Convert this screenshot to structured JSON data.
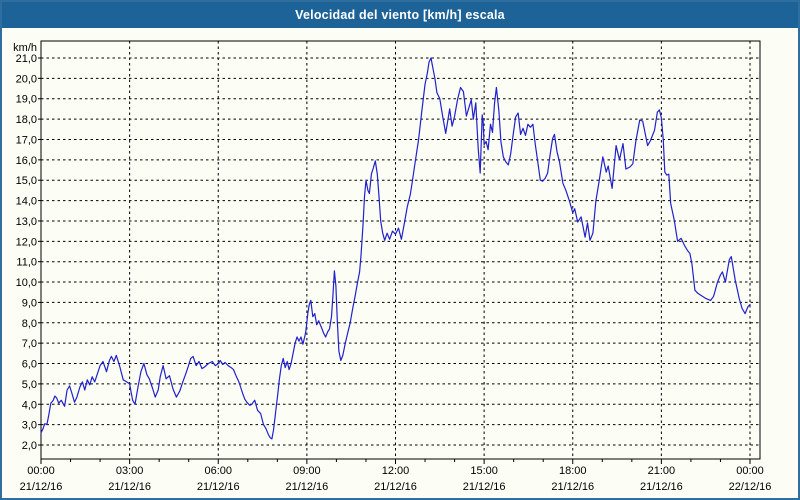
{
  "title": "Velocidad del viento [km/h] escala",
  "colors": {
    "title_bar_bg": "#1d6397",
    "title_text": "#ffffff",
    "window_border": "#2f6f9f",
    "chart_bg": "#fcfdf5",
    "grid": "#000000",
    "axis": "#000000",
    "line": "#2121cc",
    "tick_text": "#000000"
  },
  "y_axis": {
    "unit": "km/h",
    "min": 2.0,
    "max": 21.0,
    "step": 1.0,
    "tick_labels": [
      "21,0",
      "20,0",
      "19,0",
      "18,0",
      "17,0",
      "16,0",
      "15,0",
      "14,0",
      "13,0",
      "12,0",
      "11,0",
      "10,0",
      "9,0",
      "8,0",
      "7,0",
      "6,0",
      "5,0",
      "4,0",
      "3,0",
      "2,0"
    ]
  },
  "x_axis": {
    "major_ticks": [
      {
        "hour": 0,
        "time": "00:00",
        "date": "21/12/16"
      },
      {
        "hour": 3,
        "time": "03:00",
        "date": "21/12/16"
      },
      {
        "hour": 6,
        "time": "06:00",
        "date": "21/12/16"
      },
      {
        "hour": 9,
        "time": "09:00",
        "date": "21/12/16"
      },
      {
        "hour": 12,
        "time": "12:00",
        "date": "21/12/16"
      },
      {
        "hour": 15,
        "time": "15:00",
        "date": "21/12/16"
      },
      {
        "hour": 18,
        "time": "18:00",
        "date": "21/12/16"
      },
      {
        "hour": 21,
        "time": "21:00",
        "date": "21/12/16"
      },
      {
        "hour": 24,
        "time": "00:00",
        "date": "22/12/16"
      }
    ],
    "minor_tick_every_hours": 1
  },
  "chart_data": {
    "type": "line",
    "title": "Velocidad del viento [km/h] escala",
    "xlabel": "",
    "ylabel": "km/h",
    "grid": "dashed",
    "legend": "none",
    "xlim_minutes": [
      0,
      1462
    ],
    "ylim": [
      1.31,
      21.83
    ],
    "series": [
      {
        "name": "Velocidad del viento [km/h]",
        "x_unit": "minutes_since_2016-12-21T00:00",
        "points": [
          [
            0,
            2.6
          ],
          [
            4,
            2.8
          ],
          [
            8,
            3.05
          ],
          [
            12,
            3.0
          ],
          [
            16,
            3.5
          ],
          [
            20,
            4.05
          ],
          [
            25,
            4.2
          ],
          [
            28,
            4.4
          ],
          [
            32,
            4.3
          ],
          [
            36,
            4.05
          ],
          [
            41,
            4.2
          ],
          [
            48,
            3.9
          ],
          [
            53,
            4.7
          ],
          [
            58,
            4.9
          ],
          [
            62,
            4.6
          ],
          [
            68,
            4.1
          ],
          [
            73,
            4.35
          ],
          [
            79,
            4.85
          ],
          [
            84,
            5.1
          ],
          [
            89,
            4.7
          ],
          [
            94,
            5.2
          ],
          [
            99,
            4.95
          ],
          [
            104,
            5.35
          ],
          [
            109,
            5.1
          ],
          [
            114,
            5.45
          ],
          [
            120,
            5.9
          ],
          [
            126,
            6.1
          ],
          [
            133,
            5.6
          ],
          [
            139,
            6.15
          ],
          [
            143,
            6.35
          ],
          [
            148,
            6.1
          ],
          [
            153,
            6.4
          ],
          [
            160,
            5.85
          ],
          [
            167,
            5.2
          ],
          [
            174,
            5.1
          ],
          [
            180,
            5.0
          ],
          [
            186,
            4.2
          ],
          [
            191,
            4.0
          ],
          [
            197,
            4.85
          ],
          [
            203,
            5.6
          ],
          [
            209,
            6.0
          ],
          [
            215,
            5.45
          ],
          [
            220,
            5.25
          ],
          [
            227,
            4.75
          ],
          [
            232,
            4.35
          ],
          [
            238,
            4.7
          ],
          [
            242,
            5.35
          ],
          [
            248,
            5.9
          ],
          [
            254,
            5.25
          ],
          [
            261,
            5.4
          ],
          [
            268,
            4.75
          ],
          [
            275,
            4.35
          ],
          [
            282,
            4.65
          ],
          [
            288,
            5.1
          ],
          [
            294,
            5.5
          ],
          [
            299,
            5.85
          ],
          [
            304,
            6.25
          ],
          [
            309,
            6.35
          ],
          [
            315,
            5.9
          ],
          [
            321,
            6.1
          ],
          [
            327,
            5.75
          ],
          [
            333,
            5.85
          ],
          [
            340,
            6.0
          ],
          [
            348,
            6.1
          ],
          [
            354,
            5.9
          ],
          [
            360,
            6.0
          ],
          [
            364,
            6.15
          ],
          [
            369,
            5.95
          ],
          [
            374,
            6.05
          ],
          [
            380,
            5.9
          ],
          [
            386,
            5.8
          ],
          [
            391,
            5.7
          ],
          [
            396,
            5.4
          ],
          [
            402,
            5.1
          ],
          [
            406,
            4.8
          ],
          [
            410,
            4.5
          ],
          [
            414,
            4.25
          ],
          [
            418,
            4.1
          ],
          [
            424,
            3.95
          ],
          [
            428,
            4.0
          ],
          [
            434,
            4.2
          ],
          [
            440,
            3.7
          ],
          [
            446,
            3.55
          ],
          [
            452,
            3.0
          ],
          [
            457,
            2.8
          ],
          [
            462,
            2.5
          ],
          [
            466,
            2.35
          ],
          [
            469,
            2.3
          ],
          [
            472,
            2.7
          ],
          [
            475,
            3.3
          ],
          [
            478,
            3.9
          ],
          [
            481,
            4.5
          ],
          [
            484,
            5.2
          ],
          [
            488,
            5.9
          ],
          [
            492,
            6.25
          ],
          [
            496,
            5.8
          ],
          [
            500,
            6.1
          ],
          [
            504,
            5.7
          ],
          [
            508,
            6.0
          ],
          [
            512,
            6.5
          ],
          [
            516,
            7.0
          ],
          [
            520,
            7.3
          ],
          [
            524,
            7.1
          ],
          [
            528,
            7.3
          ],
          [
            532,
            6.95
          ],
          [
            536,
            7.35
          ],
          [
            538,
            7.6
          ],
          [
            542,
            8.5
          ],
          [
            545,
            8.9
          ],
          [
            548,
            9.1
          ],
          [
            552,
            8.3
          ],
          [
            556,
            8.45
          ],
          [
            560,
            7.9
          ],
          [
            564,
            8.1
          ],
          [
            569,
            7.8
          ],
          [
            574,
            7.5
          ],
          [
            578,
            7.3
          ],
          [
            582,
            7.55
          ],
          [
            586,
            7.7
          ],
          [
            590,
            8.3
          ],
          [
            593,
            9.4
          ],
          [
            596,
            10.55
          ],
          [
            599,
            9.8
          ],
          [
            602,
            8.0
          ],
          [
            605,
            6.6
          ],
          [
            609,
            6.15
          ],
          [
            613,
            6.4
          ],
          [
            618,
            7.0
          ],
          [
            623,
            7.5
          ],
          [
            628,
            8.0
          ],
          [
            633,
            8.7
          ],
          [
            638,
            9.3
          ],
          [
            643,
            10.0
          ],
          [
            647,
            10.5
          ],
          [
            650,
            11.3
          ],
          [
            654,
            12.8
          ],
          [
            657,
            14.2
          ],
          [
            660,
            15.0
          ],
          [
            664,
            14.5
          ],
          [
            667,
            14.35
          ],
          [
            671,
            15.3
          ],
          [
            675,
            15.6
          ],
          [
            679,
            15.95
          ],
          [
            683,
            15.3
          ],
          [
            687,
            14.0
          ],
          [
            690,
            13.0
          ],
          [
            694,
            12.4
          ],
          [
            698,
            12.05
          ],
          [
            703,
            12.4
          ],
          [
            708,
            12.1
          ],
          [
            714,
            12.5
          ],
          [
            720,
            12.35
          ],
          [
            726,
            12.65
          ],
          [
            732,
            12.1
          ],
          [
            738,
            12.9
          ],
          [
            744,
            13.7
          ],
          [
            750,
            14.3
          ],
          [
            754,
            14.9
          ],
          [
            760,
            15.9
          ],
          [
            767,
            17.0
          ],
          [
            773,
            18.3
          ],
          [
            780,
            19.7
          ],
          [
            785,
            20.3
          ],
          [
            788,
            20.8
          ],
          [
            792,
            21.0
          ],
          [
            796,
            20.5
          ],
          [
            800,
            20.0
          ],
          [
            804,
            19.3
          ],
          [
            810,
            19.0
          ],
          [
            816,
            18.1
          ],
          [
            822,
            17.3
          ],
          [
            826,
            17.9
          ],
          [
            830,
            18.5
          ],
          [
            835,
            17.65
          ],
          [
            840,
            18.15
          ],
          [
            846,
            18.95
          ],
          [
            852,
            19.55
          ],
          [
            858,
            19.35
          ],
          [
            864,
            18.15
          ],
          [
            870,
            18.65
          ],
          [
            874,
            18.95
          ],
          [
            878,
            18.0
          ],
          [
            883,
            18.8
          ],
          [
            888,
            16.55
          ],
          [
            892,
            15.35
          ],
          [
            896,
            18.2
          ],
          [
            898,
            17.9
          ],
          [
            900,
            16.75
          ],
          [
            904,
            16.9
          ],
          [
            908,
            16.5
          ],
          [
            913,
            17.75
          ],
          [
            917,
            17.35
          ],
          [
            921,
            18.75
          ],
          [
            925,
            19.55
          ],
          [
            930,
            18.4
          ],
          [
            934,
            16.9
          ],
          [
            939,
            16.15
          ],
          [
            944,
            15.9
          ],
          [
            949,
            15.75
          ],
          [
            954,
            16.3
          ],
          [
            959,
            17.25
          ],
          [
            964,
            18.1
          ],
          [
            969,
            18.3
          ],
          [
            974,
            17.25
          ],
          [
            979,
            17.55
          ],
          [
            984,
            17.2
          ],
          [
            989,
            17.75
          ],
          [
            994,
            17.6
          ],
          [
            999,
            17.75
          ],
          [
            1004,
            16.75
          ],
          [
            1009,
            15.9
          ],
          [
            1014,
            15.0
          ],
          [
            1019,
            14.95
          ],
          [
            1024,
            15.1
          ],
          [
            1029,
            15.35
          ],
          [
            1034,
            16.25
          ],
          [
            1039,
            17.05
          ],
          [
            1043,
            17.25
          ],
          [
            1048,
            16.4
          ],
          [
            1053,
            15.9
          ],
          [
            1060,
            14.85
          ],
          [
            1066,
            14.5
          ],
          [
            1073,
            14.0
          ],
          [
            1080,
            13.4
          ],
          [
            1084,
            13.6
          ],
          [
            1090,
            12.95
          ],
          [
            1097,
            13.2
          ],
          [
            1105,
            12.2
          ],
          [
            1110,
            12.9
          ],
          [
            1115,
            12.05
          ],
          [
            1121,
            12.4
          ],
          [
            1127,
            14.0
          ],
          [
            1133,
            14.85
          ],
          [
            1141,
            16.15
          ],
          [
            1148,
            15.4
          ],
          [
            1152,
            15.7
          ],
          [
            1160,
            14.6
          ],
          [
            1168,
            16.7
          ],
          [
            1175,
            16.0
          ],
          [
            1182,
            16.8
          ],
          [
            1188,
            15.55
          ],
          [
            1196,
            15.65
          ],
          [
            1202,
            15.8
          ],
          [
            1208,
            16.9
          ],
          [
            1216,
            17.95
          ],
          [
            1222,
            17.9
          ],
          [
            1232,
            16.7
          ],
          [
            1238,
            16.95
          ],
          [
            1246,
            17.45
          ],
          [
            1252,
            18.35
          ],
          [
            1256,
            18.45
          ],
          [
            1260,
            18.05
          ],
          [
            1264,
            16.95
          ],
          [
            1267,
            15.4
          ],
          [
            1271,
            15.25
          ],
          [
            1275,
            15.3
          ],
          [
            1279,
            13.85
          ],
          [
            1286,
            13.05
          ],
          [
            1293,
            12.0
          ],
          [
            1300,
            12.15
          ],
          [
            1307,
            11.8
          ],
          [
            1313,
            11.55
          ],
          [
            1318,
            11.4
          ],
          [
            1322,
            10.9
          ],
          [
            1328,
            9.6
          ],
          [
            1334,
            9.45
          ],
          [
            1340,
            9.35
          ],
          [
            1350,
            9.2
          ],
          [
            1360,
            9.1
          ],
          [
            1366,
            9.3
          ],
          [
            1374,
            10.0
          ],
          [
            1380,
            10.35
          ],
          [
            1384,
            10.5
          ],
          [
            1390,
            10.0
          ],
          [
            1398,
            11.1
          ],
          [
            1402,
            11.25
          ],
          [
            1410,
            10.1
          ],
          [
            1418,
            9.2
          ],
          [
            1424,
            8.7
          ],
          [
            1430,
            8.45
          ],
          [
            1436,
            8.8
          ],
          [
            1440,
            8.9
          ]
        ]
      }
    ]
  }
}
